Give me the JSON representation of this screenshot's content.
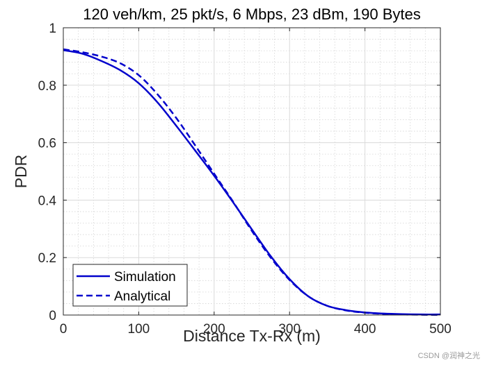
{
  "chart_data": {
    "type": "line",
    "title": "120 veh/km, 25 pkt/s, 6 Mbps, 23 dBm, 190 Bytes",
    "xlabel": "Distance Tx-Rx (m)",
    "ylabel": "PDR",
    "xlim": [
      0,
      500
    ],
    "ylim": [
      0,
      1
    ],
    "xticks": [
      0,
      100,
      200,
      300,
      400,
      500
    ],
    "xtick_labels": [
      "0",
      "100",
      "200",
      "300",
      "400",
      "500"
    ],
    "yticks": [
      0,
      0.2,
      0.4,
      0.6,
      0.8,
      1
    ],
    "ytick_labels": [
      "0",
      "0.2",
      "0.4",
      "0.6",
      "0.8",
      "1"
    ],
    "grid": true,
    "minor_grid": true,
    "legend_position": "bottom-left",
    "series": [
      {
        "name": "Simulation",
        "color": "#0000cc",
        "line_style": "solid",
        "x": [
          0,
          25,
          50,
          75,
          100,
          125,
          150,
          175,
          200,
          225,
          250,
          275,
          300,
          325,
          350,
          375,
          400,
          425,
          450,
          475,
          500
        ],
        "y": [
          0.922,
          0.91,
          0.885,
          0.853,
          0.807,
          0.74,
          0.658,
          0.572,
          0.485,
          0.393,
          0.298,
          0.205,
          0.125,
          0.065,
          0.032,
          0.017,
          0.009,
          0.005,
          0.003,
          0.002,
          0.002
        ]
      },
      {
        "name": "Analytical",
        "color": "#0000cc",
        "line_style": "dashed",
        "x": [
          0,
          25,
          50,
          75,
          100,
          125,
          150,
          175,
          200,
          225,
          250,
          275,
          300,
          325,
          350,
          375,
          400,
          425,
          450,
          475,
          500
        ],
        "y": [
          0.925,
          0.915,
          0.9,
          0.877,
          0.835,
          0.768,
          0.685,
          0.59,
          0.492,
          0.395,
          0.293,
          0.2,
          0.122,
          0.065,
          0.032,
          0.016,
          0.008,
          0.004,
          0.002,
          0.001,
          0.0
        ]
      }
    ]
  },
  "watermark": "CSDN @润神之光"
}
